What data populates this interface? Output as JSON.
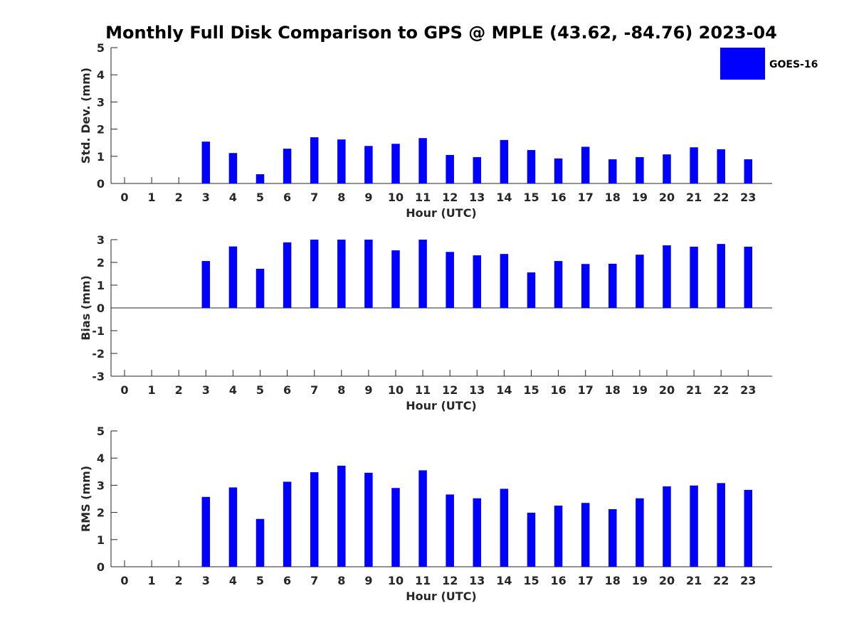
{
  "colors": {
    "bar": "#0000ff",
    "axis": "#262626",
    "background": "#ffffff"
  },
  "chart_data": {
    "title": "Monthly Full Disk Comparison to GPS @ MPLE (43.62, -84.76) 2023-04",
    "legend": {
      "entries": [
        "GOES-16"
      ],
      "placement": "top-right"
    },
    "panels": [
      {
        "type": "bar",
        "ylabel": "Std. Dev. (mm)",
        "xlabel": "Hour (UTC)",
        "ylim": [
          0,
          5
        ],
        "yticks": [
          0,
          1,
          2,
          3,
          4,
          5
        ],
        "x": [
          0,
          1,
          2,
          3,
          4,
          5,
          6,
          7,
          8,
          9,
          10,
          11,
          12,
          13,
          14,
          15,
          16,
          17,
          18,
          19,
          20,
          21,
          22,
          23
        ],
        "series": [
          {
            "name": "GOES-16",
            "values": [
              null,
              null,
              null,
              1.54,
              1.12,
              0.34,
              1.28,
              1.7,
              1.62,
              1.38,
              1.46,
              1.67,
              1.05,
              0.97,
              1.6,
              1.23,
              0.92,
              1.35,
              0.89,
              0.97,
              1.07,
              1.33,
              1.26,
              0.89
            ]
          }
        ]
      },
      {
        "type": "bar",
        "ylabel": "Bias (mm)",
        "xlabel": "Hour (UTC)",
        "ylim": [
          -3,
          3
        ],
        "yticks": [
          -3,
          -2,
          -1,
          0,
          1,
          2,
          3
        ],
        "x": [
          0,
          1,
          2,
          3,
          4,
          5,
          6,
          7,
          8,
          9,
          10,
          11,
          12,
          13,
          14,
          15,
          16,
          17,
          18,
          19,
          20,
          21,
          22,
          23
        ],
        "series": [
          {
            "name": "GOES-16",
            "values": [
              null,
              null,
              null,
              2.06,
              2.7,
              1.72,
              2.88,
              3.0,
              3.0,
              3.0,
              2.53,
              3.0,
              2.46,
              2.31,
              2.37,
              1.56,
              2.06,
              1.93,
              1.94,
              2.34,
              2.75,
              2.69,
              2.81,
              2.69
            ]
          }
        ]
      },
      {
        "type": "bar",
        "ylabel": "RMS (mm)",
        "xlabel": "Hour (UTC)",
        "ylim": [
          0,
          5
        ],
        "yticks": [
          0,
          1,
          2,
          3,
          4,
          5
        ],
        "x": [
          0,
          1,
          2,
          3,
          4,
          5,
          6,
          7,
          8,
          9,
          10,
          11,
          12,
          13,
          14,
          15,
          16,
          17,
          18,
          19,
          20,
          21,
          22,
          23
        ],
        "series": [
          {
            "name": "GOES-16",
            "values": [
              null,
              null,
              null,
              2.57,
              2.92,
              1.76,
              3.13,
              3.48,
              3.72,
              3.46,
              2.9,
              3.55,
              2.66,
              2.52,
              2.87,
              1.99,
              2.25,
              2.35,
              2.12,
              2.52,
              2.96,
              2.99,
              3.08,
              2.83
            ]
          }
        ]
      }
    ]
  }
}
